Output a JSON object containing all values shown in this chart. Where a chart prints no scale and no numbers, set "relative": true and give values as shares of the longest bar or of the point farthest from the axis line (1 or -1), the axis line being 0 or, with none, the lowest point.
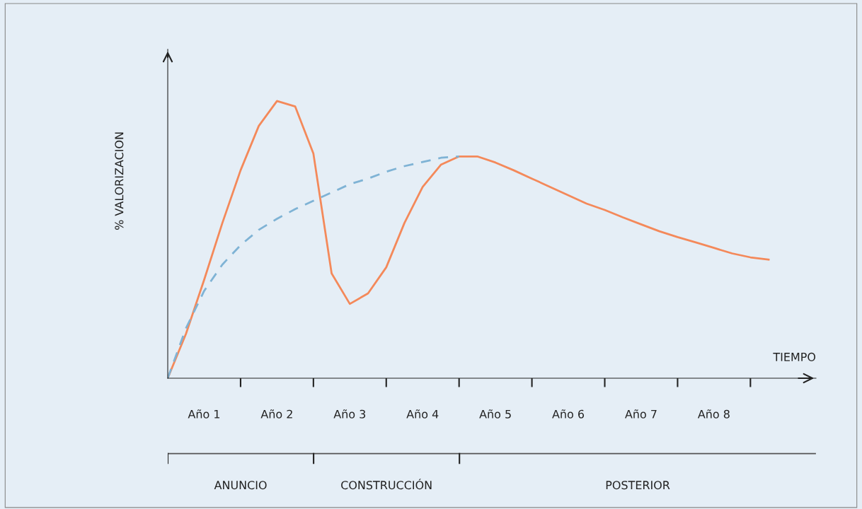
{
  "chart_data": [
    {
      "type": "line",
      "relative": true,
      "xlabel": "TIEMPO",
      "ylabel": "% VALORIZACION",
      "categories": [
        null,
        null,
        "Año 1",
        null,
        null,
        null,
        "Año 2",
        null,
        null,
        null,
        "Año 3",
        null,
        null,
        null,
        "Año 4",
        null,
        null,
        null,
        "Año 5",
        null,
        null,
        null,
        "Año 6",
        null,
        null,
        null,
        "Año 7",
        null,
        null,
        null,
        "Año 8",
        null,
        null,
        null
      ],
      "tick_labels": "x",
      "series": [
        {
          "color": "#f4895a",
          "line_style": "solid",
          "values": [
            0,
            0.16,
            0.355,
            0.56,
            0.75,
            0.91,
            1.0,
            0.98,
            0.81,
            0.378,
            0.268,
            0.306,
            0.4,
            0.56,
            0.69,
            0.77,
            0.8,
            0.8,
            0.778,
            0.75,
            0.72,
            0.69,
            0.66,
            0.63,
            0.607,
            0.58,
            0.555,
            0.53,
            0.509,
            0.49,
            0.47,
            0.45,
            0.436,
            0.428
          ]
        },
        {
          "color": "#7fb3d5",
          "line_style": "dashed",
          "values": [
            0,
            0.18,
            0.315,
            0.41,
            0.48,
            0.535,
            0.575,
            0.61,
            0.64,
            0.67,
            0.7,
            0.72,
            0.745,
            0.765,
            0.78,
            0.795,
            0.8,
            null,
            null,
            null,
            null,
            null,
            null,
            null,
            null,
            null,
            null,
            null,
            null,
            null,
            null,
            null,
            null,
            null
          ]
        }
      ],
      "marker": "none"
    },
    {
      "type": "other",
      "annotations": [
        "ANUNCIO",
        "CONSTRUCCIÓN",
        "POSTERIOR"
      ]
    }
  ]
}
